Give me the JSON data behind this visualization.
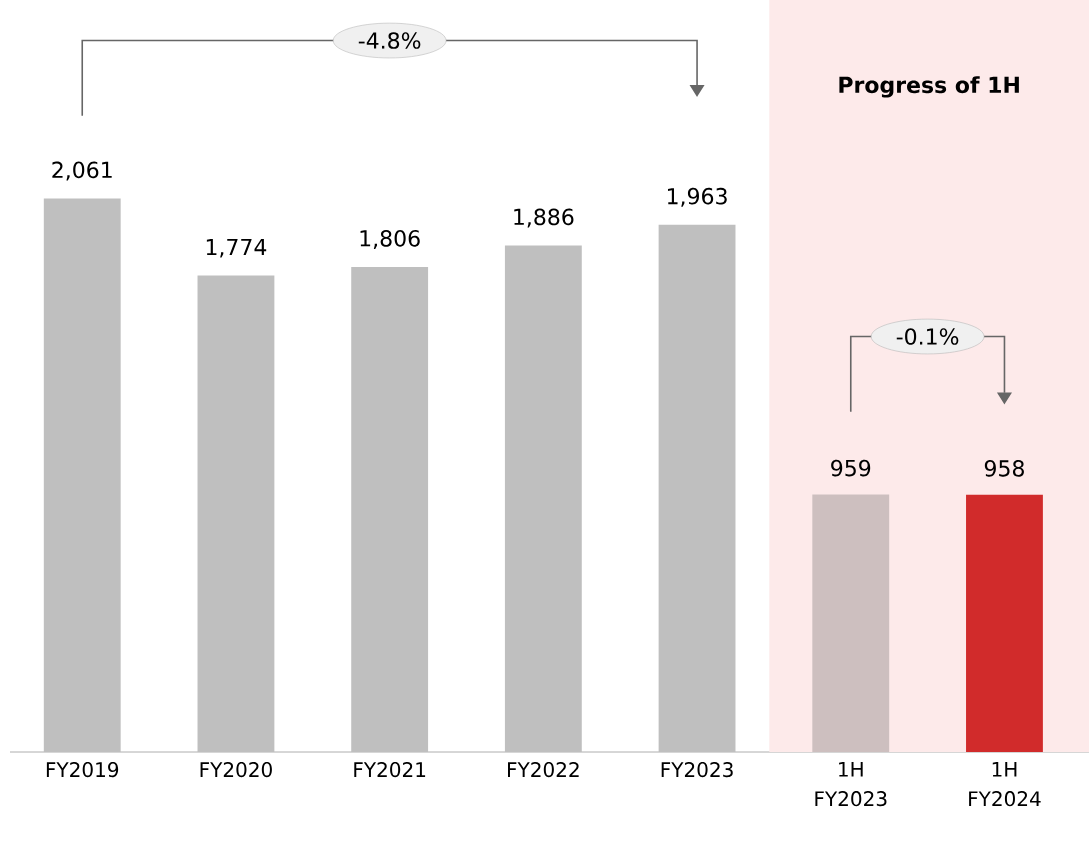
{
  "chart_data": {
    "type": "bar",
    "categories": [
      "FY2019",
      "FY2020",
      "FY2021",
      "FY2022",
      "FY2023",
      "1H FY2023",
      "1H FY2024"
    ],
    "values": [
      2061,
      1774,
      1806,
      1886,
      1963,
      959,
      958
    ],
    "value_labels": [
      "2,061",
      "1,774",
      "1,806",
      "1,886",
      "1,963",
      "959",
      "958"
    ],
    "colors": [
      "#bfbfbf",
      "#bfbfbf",
      "#bfbfbf",
      "#bfbfbf",
      "#bfbfbf",
      "#cdbfbf",
      "#d12b2b"
    ],
    "ylim": [
      0,
      2800
    ],
    "tick_labels": "x",
    "bands": [
      {
        "axis": "x",
        "from": "1H FY2023",
        "to": "1H FY2024",
        "label": "Progress of 1H",
        "color": "#fdeaea"
      }
    ],
    "annotations": [
      "-4.8%",
      "-0.1%"
    ]
  }
}
